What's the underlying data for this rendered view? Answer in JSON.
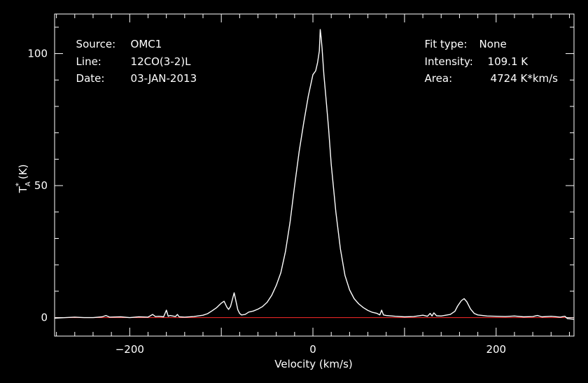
{
  "header": {
    "source_label": "Source:",
    "source_value": "OMC1",
    "line_label": "Line:",
    "line_value": "12CO(3-2)L",
    "date_label": "Date:",
    "date_value": "03-JAN-2013",
    "fit_label": "Fit type:",
    "fit_value": "None",
    "intensity_label": "Intensity:",
    "intensity_value": "109.1 K",
    "area_label": "Area:",
    "area_value": "4724 K*km/s"
  },
  "colors": {
    "background": "#000000",
    "axes": "#ffffff",
    "spectrum": "#ffffff",
    "baseline": "#ff2a2a"
  },
  "chart_data": {
    "type": "line",
    "title": "",
    "xlabel": "Velocity (km/s)",
    "ylabel": "T_A^* (K)",
    "xlim": [
      -282,
      285
    ],
    "ylim": [
      -7,
      115
    ],
    "x_ticks": [
      -200,
      0,
      200
    ],
    "y_ticks": [
      0,
      50,
      100
    ],
    "grid": false,
    "baseline_y": 0,
    "series": [
      {
        "x": [
          -282,
          -270,
          -260,
          -250,
          -240,
          -230,
          -226,
          -222,
          -210,
          -200,
          -190,
          -180,
          -175,
          -172,
          -168,
          -163,
          -160,
          -158,
          -156,
          -150,
          -148,
          -146,
          -140,
          -130,
          -120,
          -115,
          -110,
          -105,
          -100,
          -97,
          -94,
          -92,
          -90,
          -88,
          -86,
          -84,
          -82,
          -80,
          -78,
          -74,
          -70,
          -65,
          -60,
          -55,
          -50,
          -45,
          -40,
          -35,
          -30,
          -25,
          -20,
          -15,
          -10,
          -5,
          0,
          3,
          5,
          7,
          8,
          9,
          10,
          11,
          12,
          14,
          17,
          20,
          25,
          30,
          35,
          40,
          45,
          50,
          55,
          60,
          65,
          70,
          73,
          75,
          77,
          80,
          90,
          100,
          110,
          120,
          125,
          128,
          130,
          132,
          135,
          140,
          145,
          150,
          155,
          158,
          162,
          165,
          168,
          172,
          176,
          180,
          190,
          200,
          210,
          220,
          230,
          240,
          245,
          250,
          260,
          270,
          275,
          278,
          285
        ],
        "y": [
          -0.2,
          0,
          0.2,
          0,
          0,
          0.3,
          0.8,
          0.2,
          0.3,
          0,
          0.3,
          0.2,
          1.2,
          0.4,
          0.5,
          0.3,
          2.8,
          0.5,
          0.8,
          0.4,
          1.2,
          0.3,
          0.2,
          0.4,
          0.9,
          1.5,
          2.6,
          3.8,
          5.5,
          6.2,
          4,
          3.1,
          4.2,
          6.8,
          9.4,
          6.2,
          3,
          1.6,
          1,
          1.2,
          2.1,
          2.5,
          3.2,
          4.2,
          5.8,
          8.4,
          12.2,
          17,
          25,
          36,
          50,
          63,
          74,
          84,
          92,
          93.5,
          96.5,
          101,
          109.1,
          106,
          102,
          97,
          92,
          84,
          72,
          58,
          40,
          26,
          16,
          10.5,
          7.2,
          5.2,
          3.8,
          2.7,
          2,
          1.6,
          1,
          2.8,
          1,
          0.8,
          0.5,
          0.3,
          0.4,
          0.9,
          0.5,
          1.6,
          0.6,
          1.8,
          0.7,
          0.6,
          0.9,
          1.2,
          2.4,
          4.4,
          6.4,
          7.2,
          6,
          3.3,
          1.6,
          1,
          0.6,
          0.5,
          0.4,
          0.6,
          0.3,
          0.4,
          0.8,
          0.3,
          0.5,
          0.2,
          0.5,
          -0.4,
          -0.6
        ]
      }
    ]
  }
}
